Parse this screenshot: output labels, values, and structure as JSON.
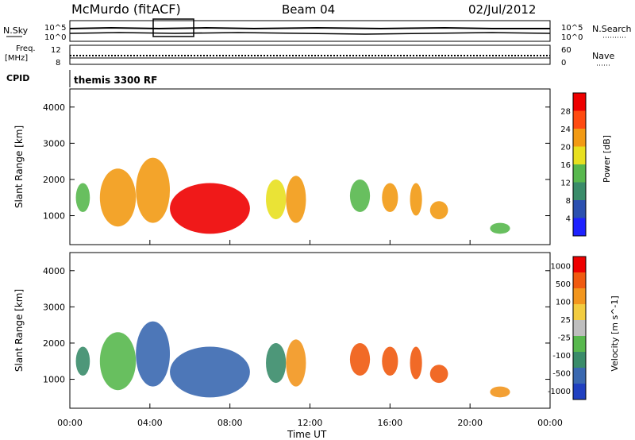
{
  "header": {
    "station": "McMurdo (fitACF)",
    "beam": "Beam 04",
    "date": "02/Jul/2012"
  },
  "summary": {
    "nsky_label": "N.Sky",
    "nsky_ticks": [
      "10^5",
      "10^0"
    ],
    "nsearch_label": "N.Search",
    "nsearch_ticks": [
      "10^5",
      "10^0"
    ],
    "freq_label": "Freq.",
    "freq_unit": "[MHz]",
    "freq_ticks": [
      "12",
      "8"
    ],
    "nave_label": "Nave",
    "nave_ticks": [
      "60",
      "0"
    ],
    "cpid_label": "CPID",
    "cpid_value": "themis 3300 RF"
  },
  "chart_data": [
    {
      "type": "heatmap",
      "parameter": "Power",
      "ylabel": "Slant Range [km]",
      "xlabel": "Time UT",
      "ylim": [
        200,
        4500
      ],
      "xlim_hours": [
        0,
        24
      ],
      "yticks": [
        "1000",
        "2000",
        "3000",
        "4000"
      ],
      "colorbar_label": "Power [dB]",
      "colorbar_ticks": [
        "4",
        "8",
        "12",
        "16",
        "20",
        "24",
        "28"
      ],
      "colorbar_colors": [
        "#1e22ff",
        "#2b50b0",
        "#3a8c6a",
        "#58b84e",
        "#e8e020",
        "#f29a14",
        "#ff4a10",
        "#ee0000"
      ],
      "echo_regions": [
        {
          "t_start": 0.3,
          "t_end": 1.0,
          "r_low": 1100,
          "r_high": 1900,
          "level": 3
        },
        {
          "t_start": 1.5,
          "t_end": 3.3,
          "r_low": 700,
          "r_high": 2300,
          "level": 5
        },
        {
          "t_start": 3.3,
          "t_end": 5.0,
          "r_low": 800,
          "r_high": 2600,
          "level": 5
        },
        {
          "t_start": 5.0,
          "t_end": 9.0,
          "r_low": 500,
          "r_high": 1900,
          "level": 7
        },
        {
          "t_start": 9.8,
          "t_end": 10.8,
          "r_low": 900,
          "r_high": 2000,
          "level": 4
        },
        {
          "t_start": 10.8,
          "t_end": 11.8,
          "r_low": 800,
          "r_high": 2100,
          "level": 5
        },
        {
          "t_start": 14.0,
          "t_end": 15.0,
          "r_low": 1100,
          "r_high": 2000,
          "level": 3
        },
        {
          "t_start": 15.6,
          "t_end": 16.4,
          "r_low": 1100,
          "r_high": 1900,
          "level": 5
        },
        {
          "t_start": 17.0,
          "t_end": 17.6,
          "r_low": 1000,
          "r_high": 1900,
          "level": 5
        },
        {
          "t_start": 18.0,
          "t_end": 18.9,
          "r_low": 900,
          "r_high": 1400,
          "level": 5
        },
        {
          "t_start": 21.0,
          "t_end": 22.0,
          "r_low": 500,
          "r_high": 800,
          "level": 3
        }
      ]
    },
    {
      "type": "heatmap",
      "parameter": "Velocity",
      "ylabel": "Slant Range [km]",
      "xlabel": "Time UT",
      "ylim": [
        200,
        4500
      ],
      "xlim_hours": [
        0,
        24
      ],
      "yticks": [
        "1000",
        "2000",
        "3000",
        "4000"
      ],
      "colorbar_label": "Velocity [m s^-1]",
      "colorbar_ticks": [
        "1000",
        "500",
        "100",
        "25",
        "-25",
        "-100",
        "-500",
        "-1000"
      ],
      "colorbar_colors": [
        "#2040c0",
        "#3a68b0",
        "#3a8c6a",
        "#58b84e",
        "#bebebe",
        "#f2cc40",
        "#f2961e",
        "#f05a10",
        "#ee0000"
      ],
      "echo_regions": [
        {
          "t_start": 0.3,
          "t_end": 1.0,
          "r_low": 1100,
          "r_high": 1900,
          "level": 2
        },
        {
          "t_start": 1.5,
          "t_end": 3.3,
          "r_low": 700,
          "r_high": 2300,
          "level": 3
        },
        {
          "t_start": 3.3,
          "t_end": 5.0,
          "r_low": 800,
          "r_high": 2600,
          "level": 1
        },
        {
          "t_start": 5.0,
          "t_end": 9.0,
          "r_low": 500,
          "r_high": 1900,
          "level": 1
        },
        {
          "t_start": 9.8,
          "t_end": 10.8,
          "r_low": 900,
          "r_high": 2000,
          "level": 2
        },
        {
          "t_start": 10.8,
          "t_end": 11.8,
          "r_low": 800,
          "r_high": 2100,
          "level": 6
        },
        {
          "t_start": 14.0,
          "t_end": 15.0,
          "r_low": 1100,
          "r_high": 2000,
          "level": 7
        },
        {
          "t_start": 15.6,
          "t_end": 16.4,
          "r_low": 1100,
          "r_high": 1900,
          "level": 7
        },
        {
          "t_start": 17.0,
          "t_end": 17.6,
          "r_low": 1000,
          "r_high": 1900,
          "level": 7
        },
        {
          "t_start": 18.0,
          "t_end": 18.9,
          "r_low": 900,
          "r_high": 1400,
          "level": 7
        },
        {
          "t_start": 21.0,
          "t_end": 22.0,
          "r_low": 500,
          "r_high": 800,
          "level": 6
        }
      ]
    }
  ],
  "time_axis": {
    "label": "Time UT",
    "ticks": [
      "00:00",
      "04:00",
      "08:00",
      "12:00",
      "16:00",
      "20:00",
      "00:00"
    ]
  }
}
